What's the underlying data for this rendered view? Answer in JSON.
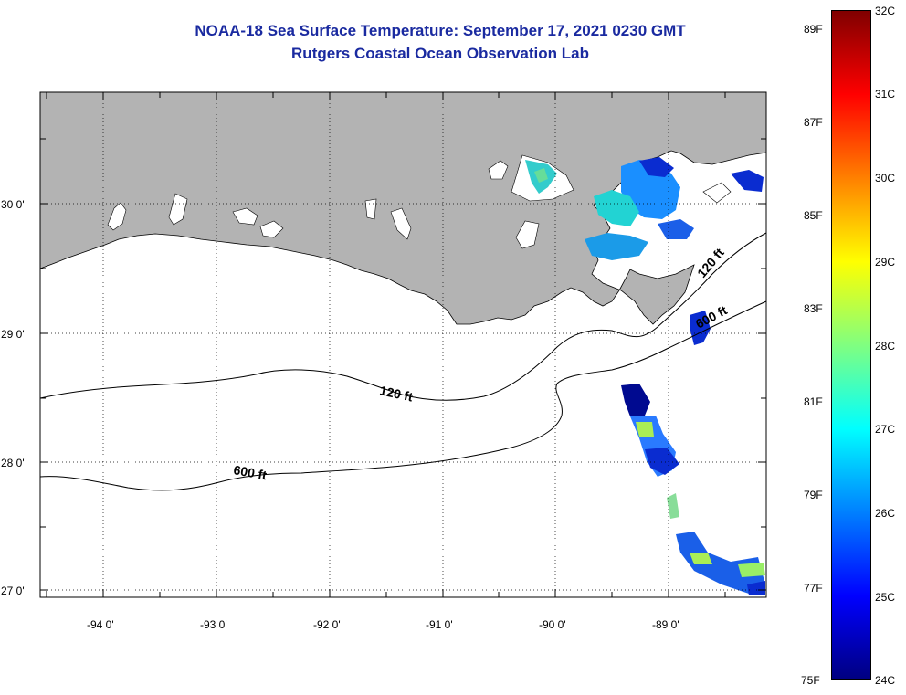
{
  "title": "NOAA-18 Sea Surface Temperature:  September 17, 2021 0230 GMT",
  "subtitle": "Rutgers Coastal Ocean Observation Lab",
  "map": {
    "lon_labels": [
      "-94 0'",
      "-93 0'",
      "-92 0'",
      "-91 0'",
      "-90 0'",
      "-89 0'"
    ],
    "lat_labels": [
      "30 0'",
      "29 0'",
      "28 0'",
      "27 0'"
    ],
    "contour_labels": [
      "120 ft",
      "120 ft",
      "600 ft",
      "600 ft"
    ],
    "colors": {
      "land": "#b3b3b3",
      "ocean": "#ffffff",
      "grid": "#000000"
    }
  },
  "colorbar": {
    "celsius_labels": [
      "32C",
      "31C",
      "30C",
      "29C",
      "28C",
      "27C",
      "26C",
      "25C",
      "24C"
    ],
    "fahrenheit_labels": [
      "89F",
      "87F",
      "85F",
      "83F",
      "81F",
      "79F",
      "77F",
      "75F"
    ],
    "colormap": [
      "#800000",
      "#ff0000",
      "#ff8000",
      "#ffff00",
      "#80ff80",
      "#00ffff",
      "#0080ff",
      "#0000ff",
      "#000080"
    ]
  }
}
